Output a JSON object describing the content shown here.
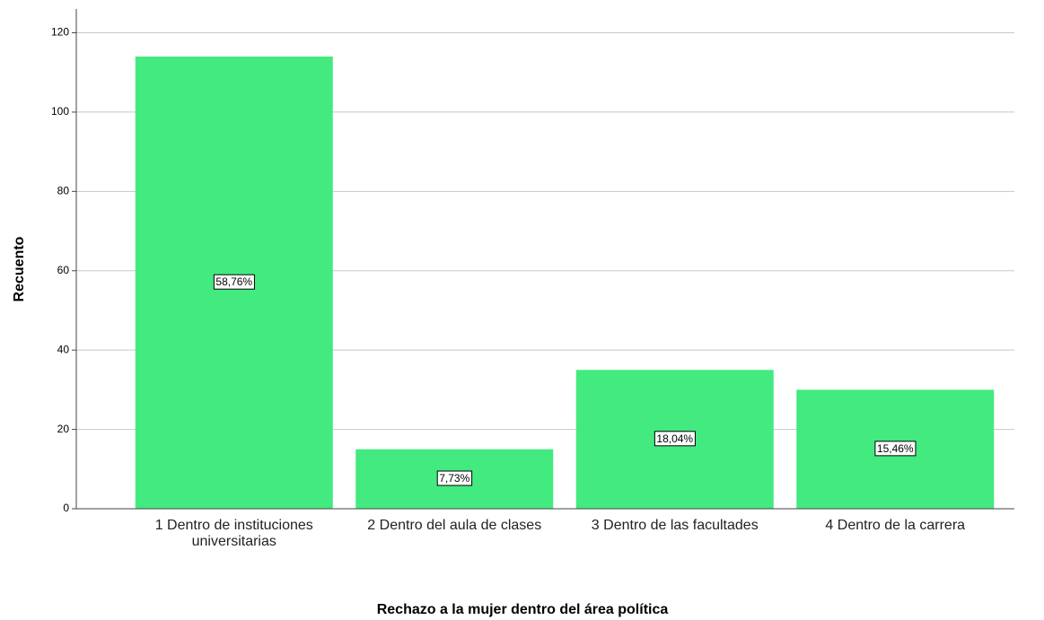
{
  "chart_data": {
    "type": "bar",
    "categories": [
      "1 Dentro de instituciones universitarias",
      "2 Dentro del aula de clases",
      "3 Dentro de las facultades",
      "4 Dentro de la carrera"
    ],
    "values": [
      114,
      15,
      35,
      30
    ],
    "percent_labels": [
      "58,76%",
      "7,73%",
      "18,04%",
      "15,46%"
    ],
    "color": "#42ea7f",
    "ylim": [
      0,
      126
    ],
    "yticks": [
      0,
      20,
      40,
      60,
      80,
      100,
      120
    ],
    "grid": true,
    "y_label": "Recuento",
    "x_label": "Rechazo a la mujer dentro del área política"
  }
}
